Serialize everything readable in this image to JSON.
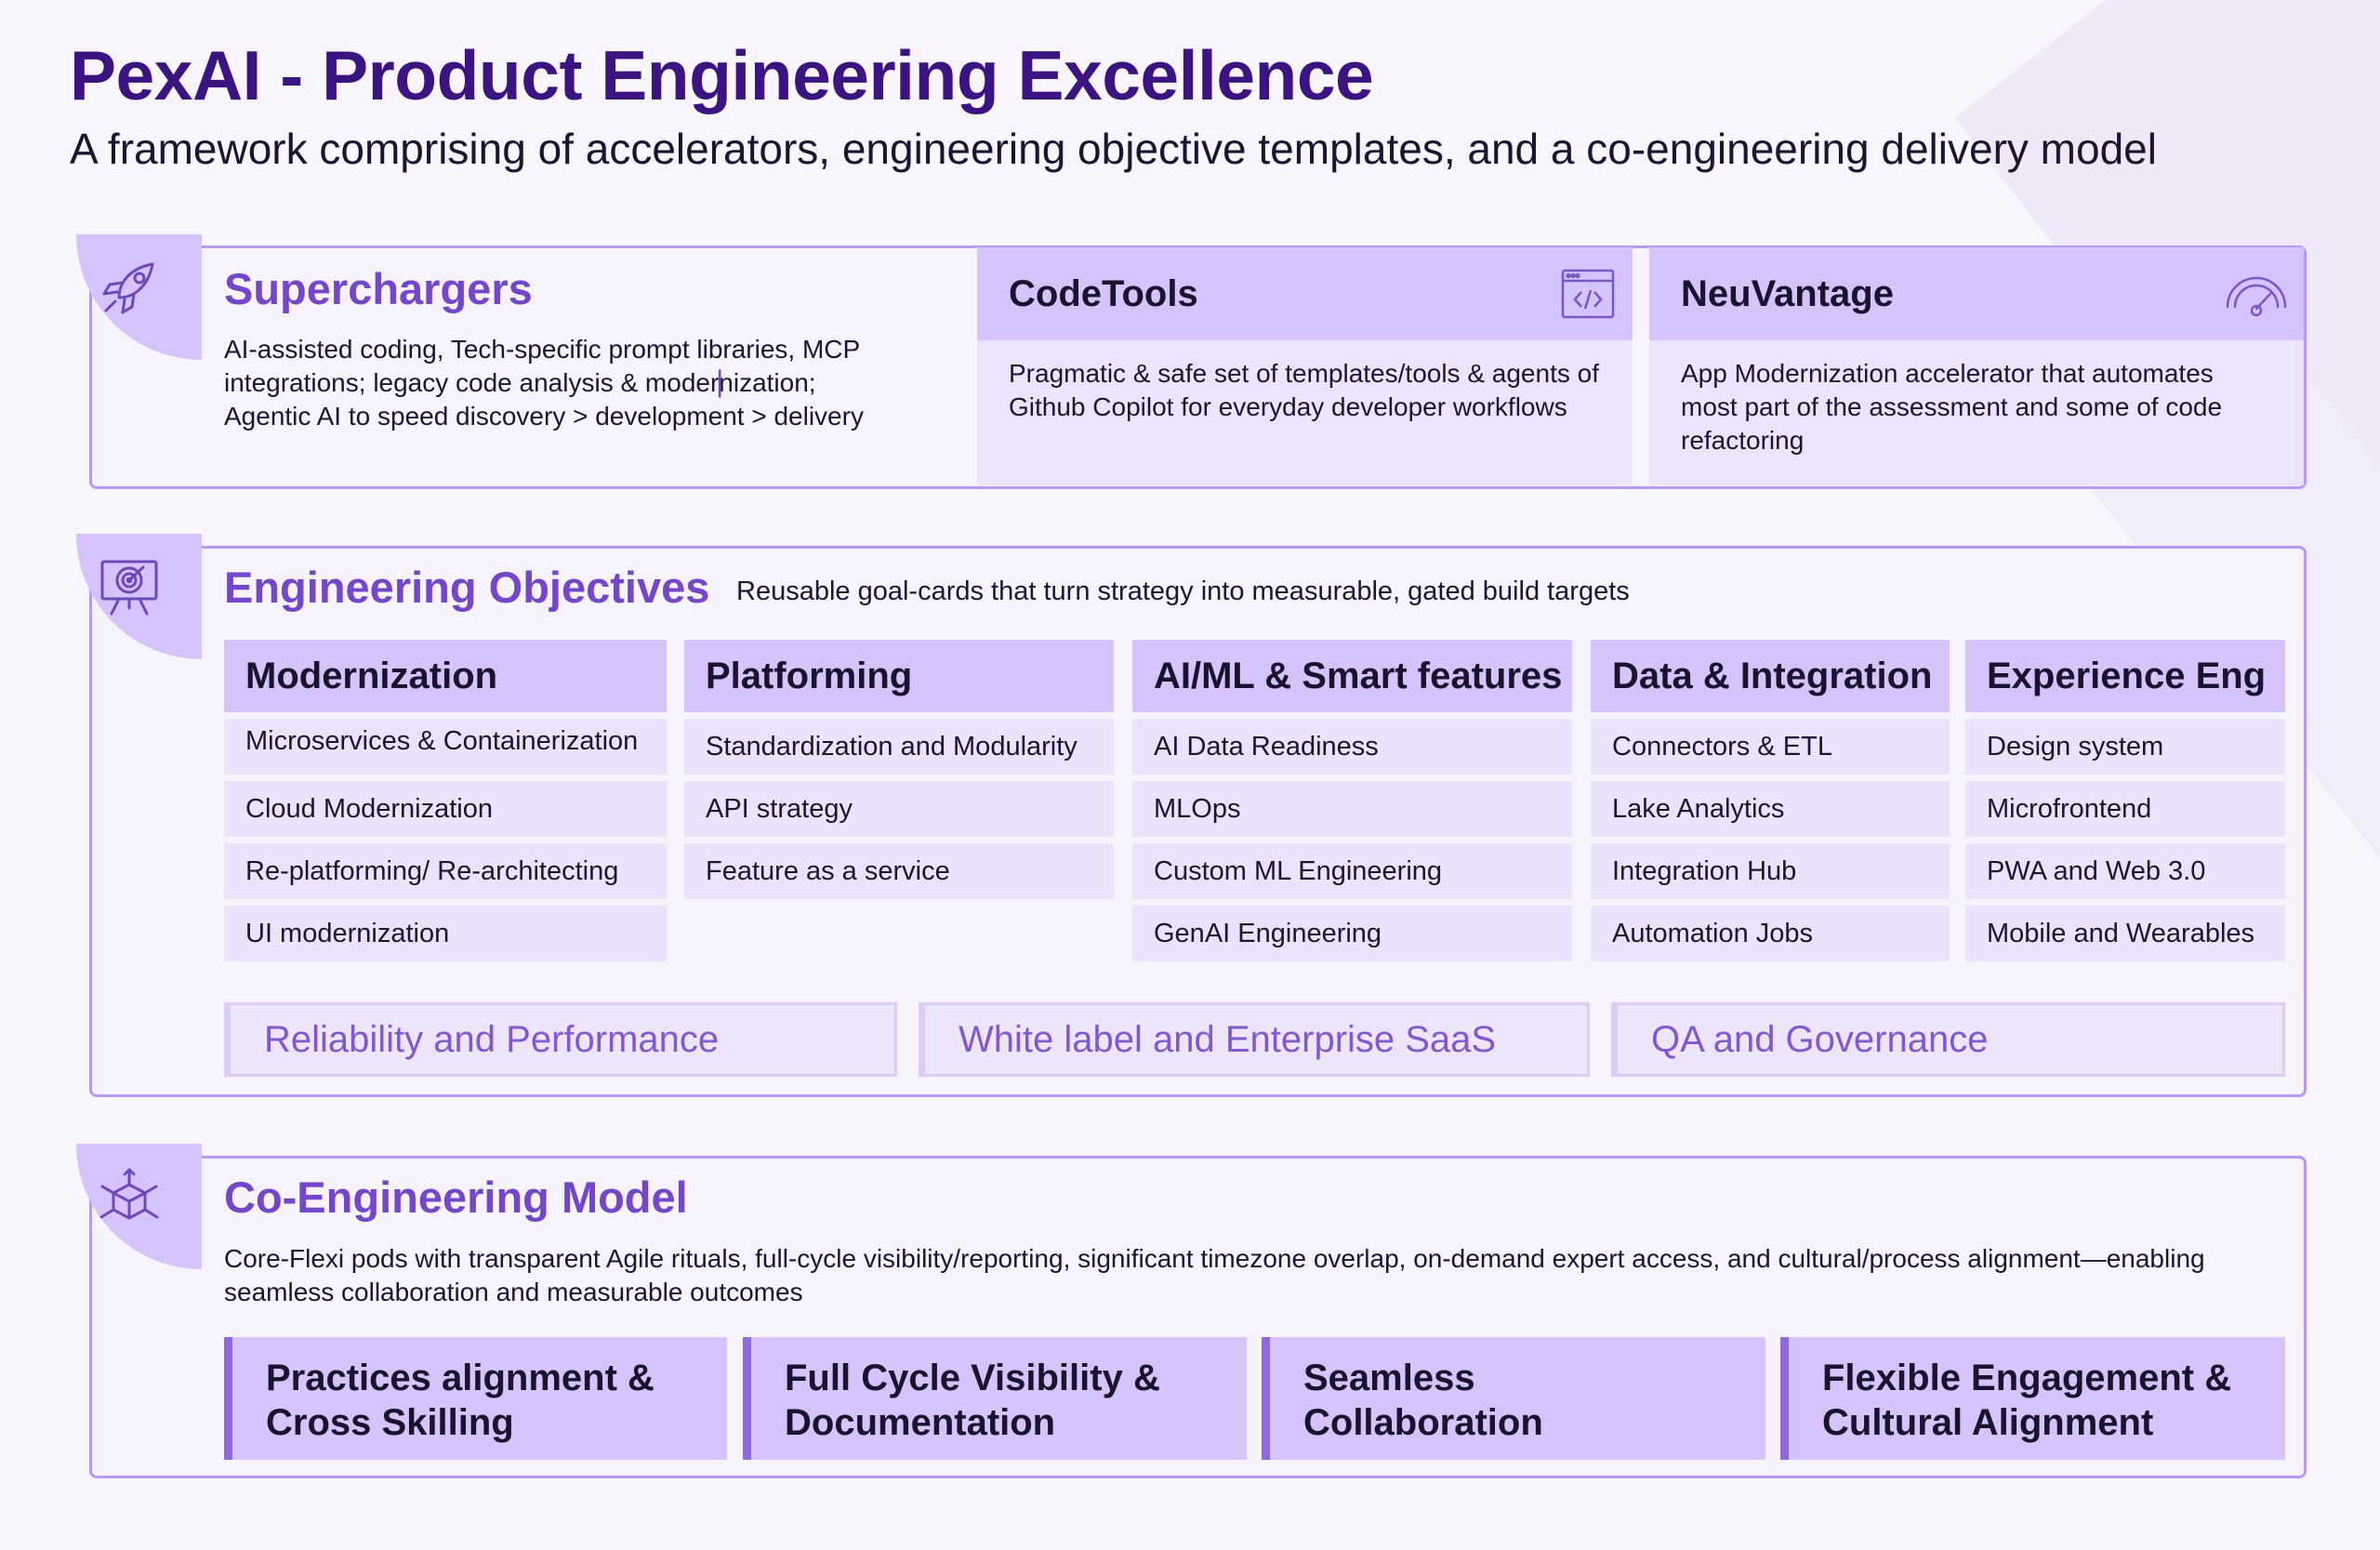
{
  "header": {
    "title": "PexAI - Product Engineering Excellence",
    "subtitle": "A framework comprising of accelerators, engineering objective templates, and a co-engineering delivery model"
  },
  "superchargers": {
    "title": "Superchargers",
    "icon": "rocket-icon",
    "description": "AI-assisted coding, Tech-specific prompt libraries, MCP integrations; legacy code analysis & modernization; Agentic AI to speed discovery > development > delivery",
    "tools": [
      {
        "name": "CodeTools",
        "icon": "code-window-icon",
        "description": "Pragmatic & safe set of templates/tools & agents of Github Copilot for everyday developer workflows"
      },
      {
        "name": "NeuVantage",
        "icon": "gauge-icon",
        "description": "App Modernization accelerator that automates most part of the assessment and some of code refactoring"
      }
    ]
  },
  "objectives": {
    "title": "Engineering Objectives",
    "icon": "target-presentation-icon",
    "subtitle": "Reusable goal-cards that turn strategy into measurable, gated build targets",
    "columns": [
      {
        "title": "Modernization",
        "items": [
          "Microservices & Containerization",
          "Cloud Modernization",
          "Re-platforming/ Re-architecting",
          "UI modernization"
        ]
      },
      {
        "title": "Platforming",
        "items": [
          "Standardization and Modularity",
          "API strategy",
          "Feature as a service"
        ]
      },
      {
        "title": "AI/ML & Smart features",
        "items": [
          "AI Data Readiness",
          "MLOps",
          "Custom ML Engineering",
          "GenAI Engineering"
        ]
      },
      {
        "title": "Data & Integration",
        "items": [
          "Connectors & ETL",
          "Lake Analytics",
          "Integration Hub",
          "Automation Jobs"
        ]
      },
      {
        "title": "Experience Eng",
        "items": [
          "Design system",
          "Microfrontend",
          "PWA and Web 3.0",
          "Mobile and Wearables"
        ]
      }
    ],
    "cross_cutting": [
      "Reliability and Performance",
      "White label and Enterprise SaaS",
      "QA and Governance"
    ]
  },
  "co_engineering": {
    "title": "Co-Engineering Model",
    "icon": "cube-network-icon",
    "description": "Core-Flexi pods with transparent Agile rituals, full-cycle visibility/reporting, significant timezone overlap, on-demand expert access, and cultural/process alignment—enabling seamless collaboration and measurable outcomes",
    "pillars": [
      {
        "line1": "Practices alignment &",
        "line2": "Cross Skilling"
      },
      {
        "line1": "Full Cycle Visibility &",
        "line2": "Documentation"
      },
      {
        "line1": "Seamless",
        "line2": "Collaboration"
      },
      {
        "line1": "Flexible Engagement &",
        "line2": "Cultural Alignment"
      }
    ]
  },
  "colors": {
    "title": "#3b1482",
    "accent": "#7446c9",
    "header_fill": "#d6c3fb",
    "item_fill": "#ebe2fc",
    "border": "#b79af0"
  }
}
